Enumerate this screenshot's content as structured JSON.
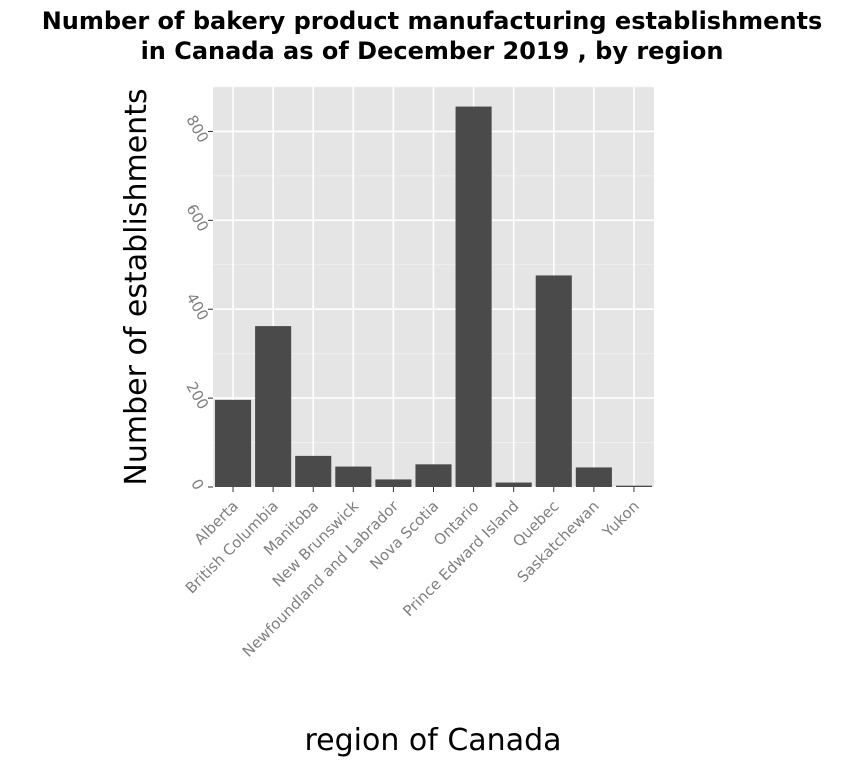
{
  "chart_data": {
    "type": "bar",
    "title_lines": [
      "Number of bakery product manufacturing establishments",
      "in Canada as of December 2019 , by region"
    ],
    "xlabel": "region of Canada",
    "ylabel": "Number of establishments",
    "categories": [
      "Alberta",
      "British Columbia",
      "Manitoba",
      "New Brunswick",
      "Newfoundland and Labrador",
      "Nova Scotia",
      "Ontario",
      "Prince Edward Island",
      "Quebec",
      "Saskatchewan",
      "Yukon"
    ],
    "values": [
      196,
      362,
      70,
      46,
      17,
      51,
      856,
      10,
      476,
      44,
      3
    ],
    "ylim": [
      0,
      900
    ],
    "yticks": [
      0,
      200,
      400,
      600,
      800
    ],
    "grid": true,
    "bar_color": "#4a4a4a",
    "panel_color": "#e5e5e5",
    "grid_color": "#ffffff"
  }
}
